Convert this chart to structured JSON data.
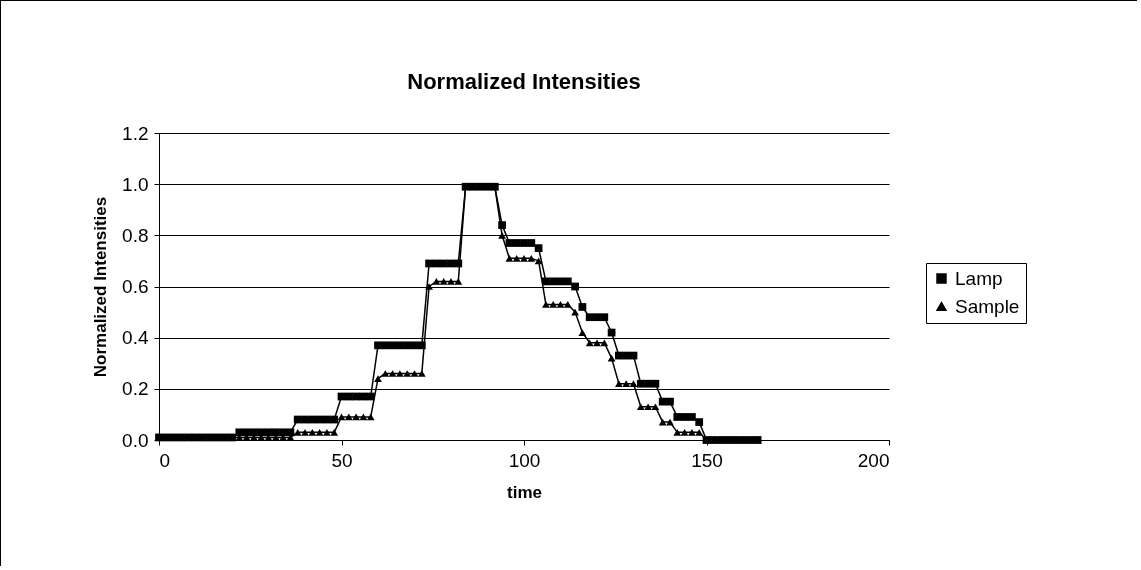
{
  "chart_data": {
    "type": "line",
    "title": "Normalized Intensities",
    "xlabel": "time",
    "ylabel": "Normalized Intensities",
    "x": [
      0,
      2,
      4,
      6,
      8,
      10,
      12,
      14,
      16,
      18,
      20,
      22,
      24,
      26,
      28,
      30,
      32,
      34,
      36,
      38,
      40,
      42,
      44,
      46,
      48,
      50,
      52,
      54,
      56,
      58,
      60,
      62,
      64,
      66,
      68,
      70,
      72,
      74,
      76,
      78,
      80,
      82,
      84,
      86,
      88,
      90,
      92,
      94,
      96,
      98,
      100,
      102,
      104,
      106,
      108,
      110,
      112,
      114,
      116,
      118,
      120,
      122,
      124,
      126,
      128,
      130,
      132,
      134,
      136,
      138,
      140,
      142,
      144,
      146,
      148,
      150,
      152,
      154,
      156,
      158,
      160,
      162,
      164
    ],
    "series": [
      {
        "name": "Lamp",
        "color": "#000000",
        "marker": "square",
        "values": [
          0.01,
          0.01,
          0.01,
          0.01,
          0.01,
          0.01,
          0.01,
          0.01,
          0.01,
          0.01,
          0.01,
          0.03,
          0.03,
          0.03,
          0.03,
          0.03,
          0.03,
          0.03,
          0.03,
          0.08,
          0.08,
          0.08,
          0.08,
          0.08,
          0.08,
          0.17,
          0.17,
          0.17,
          0.17,
          0.17,
          0.37,
          0.37,
          0.37,
          0.37,
          0.37,
          0.37,
          0.37,
          0.69,
          0.69,
          0.69,
          0.69,
          0.69,
          0.99,
          0.99,
          0.99,
          0.99,
          0.99,
          0.84,
          0.77,
          0.77,
          0.77,
          0.77,
          0.75,
          0.62,
          0.62,
          0.62,
          0.62,
          0.6,
          0.52,
          0.48,
          0.48,
          0.48,
          0.42,
          0.33,
          0.33,
          0.33,
          0.22,
          0.22,
          0.22,
          0.15,
          0.15,
          0.09,
          0.09,
          0.09,
          0.07,
          0,
          0,
          0,
          0,
          0,
          0,
          0,
          0
        ]
      },
      {
        "name": "Sample",
        "color": "#000000",
        "marker": "triangle",
        "values": [
          0.01,
          0.01,
          0.01,
          0.01,
          0.01,
          0.01,
          0.01,
          0.01,
          0.01,
          0.01,
          0.01,
          0.01,
          0.01,
          0.01,
          0.01,
          0.01,
          0.01,
          0.01,
          0.01,
          0.03,
          0.03,
          0.03,
          0.03,
          0.03,
          0.03,
          0.09,
          0.09,
          0.09,
          0.09,
          0.09,
          0.24,
          0.26,
          0.26,
          0.26,
          0.26,
          0.26,
          0.26,
          0.6,
          0.62,
          0.62,
          0.62,
          0.62,
          0.99,
          0.99,
          0.99,
          0.99,
          0.99,
          0.8,
          0.71,
          0.71,
          0.71,
          0.71,
          0.7,
          0.53,
          0.53,
          0.53,
          0.53,
          0.5,
          0.42,
          0.38,
          0.38,
          0.38,
          0.32,
          0.22,
          0.22,
          0.22,
          0.13,
          0.13,
          0.13,
          0.07,
          0.07,
          0.03,
          0.03,
          0.03,
          0.03,
          0,
          0,
          0,
          0,
          0,
          0,
          0,
          0
        ]
      }
    ],
    "xlim": [
      0,
      200
    ],
    "xticks": [
      0,
      50,
      100,
      150,
      200
    ],
    "ylim": [
      0,
      1.2
    ],
    "yticks": [
      {
        "value": 0,
        "label": "0.0"
      },
      0.2,
      0.4,
      0.6,
      0.8,
      {
        "value": 1,
        "label": "1.0"
      },
      1.2
    ],
    "grid": "y",
    "legend": "right",
    "line_style": "solid"
  }
}
